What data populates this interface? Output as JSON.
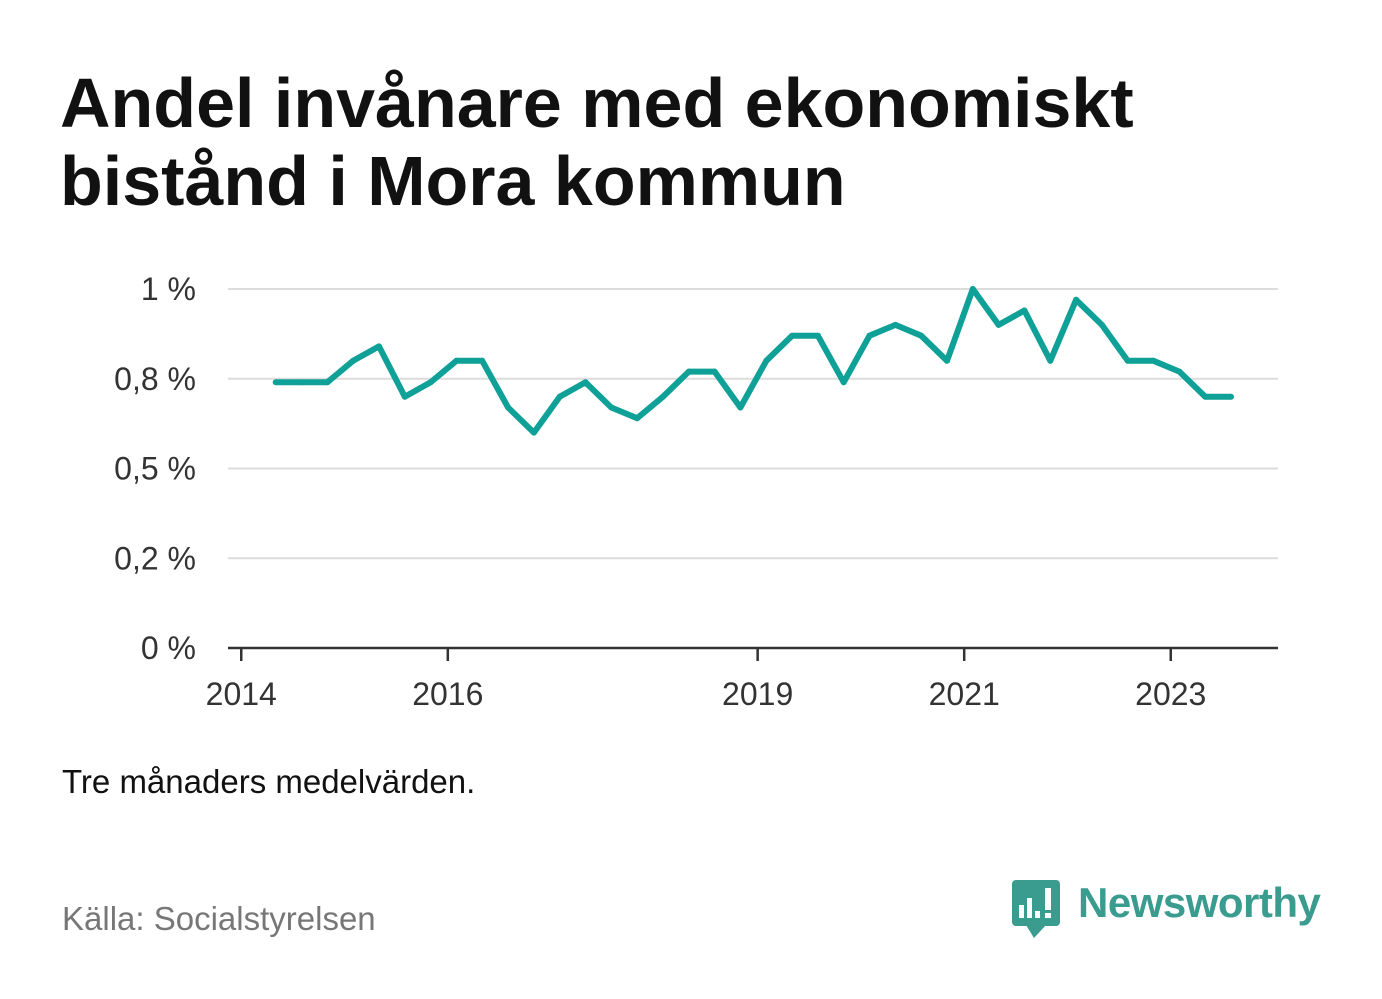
{
  "logo": {
    "text": "Newsworthy",
    "icon": "bar-chart-speech-bubble-icon"
  },
  "colors": {
    "line": "#0fa197",
    "grid": "#dcdcdc",
    "axis": "#333333",
    "brand": "#3a9b8f",
    "background": "#ffffff"
  },
  "chart_data": {
    "type": "line",
    "title": "Andel invånare med ekonomiskt bistånd i Mora kommun",
    "caption": "Tre månaders medelvärden.",
    "source": "Källa: Socialstyrelsen",
    "xlabel": "",
    "ylabel": "",
    "x": [
      "2014-05",
      "2014-08",
      "2014-11",
      "2015-02",
      "2015-05",
      "2015-08",
      "2015-11",
      "2016-02",
      "2016-05",
      "2016-08",
      "2016-11",
      "2017-02",
      "2017-05",
      "2017-08",
      "2017-11",
      "2018-02",
      "2018-05",
      "2018-08",
      "2018-11",
      "2019-02",
      "2019-05",
      "2019-08",
      "2019-11",
      "2020-02",
      "2020-05",
      "2020-08",
      "2020-11",
      "2021-02",
      "2021-05",
      "2021-08",
      "2021-11",
      "2022-02",
      "2022-05",
      "2022-08",
      "2022-11",
      "2023-02",
      "2023-05",
      "2023-08"
    ],
    "series": [
      {
        "color": "#0fa197",
        "values": [
          0.74,
          0.74,
          0.74,
          0.8,
          0.84,
          0.7,
          0.74,
          0.8,
          0.8,
          0.67,
          0.6,
          0.7,
          0.74,
          0.67,
          0.64,
          0.7,
          0.77,
          0.77,
          0.67,
          0.8,
          0.87,
          0.87,
          0.74,
          0.87,
          0.9,
          0.87,
          0.8,
          1.0,
          0.9,
          0.94,
          0.8,
          0.97,
          0.9,
          0.8,
          0.8,
          0.77,
          0.7,
          0.7
        ]
      }
    ],
    "xlim": [
      "2013-11-15",
      "2024-01-15"
    ],
    "ylim": [
      0,
      1
    ],
    "xticks": [
      "2014",
      "2016",
      "2019",
      "2021",
      "2023"
    ],
    "yticks": [
      {
        "value": 0,
        "label": "0 %"
      },
      {
        "value": 0.25,
        "label": "0,2 %"
      },
      {
        "value": 0.5,
        "label": "0,5 %"
      },
      {
        "value": 0.75,
        "label": "0,8 %"
      },
      {
        "value": 1,
        "label": "1 %"
      }
    ],
    "grid": "horizontal",
    "legend": "none"
  }
}
